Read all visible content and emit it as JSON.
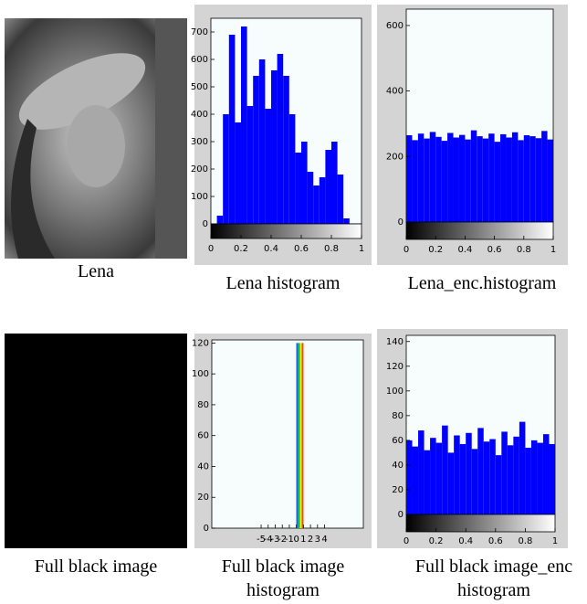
{
  "images": [
    {
      "caption": "Lena"
    },
    {
      "caption": "Full black image"
    }
  ],
  "chart_data": [
    {
      "type": "histogram",
      "caption": "Lena histogram",
      "color": "#0000ff",
      "bins": [
        0,
        0.04,
        0.08,
        0.12,
        0.16,
        0.2,
        0.24,
        0.28,
        0.32,
        0.36,
        0.4,
        0.44,
        0.48,
        0.52,
        0.56,
        0.6,
        0.64,
        0.68,
        0.72,
        0.76,
        0.8,
        0.84,
        0.88,
        0.92,
        0.96,
        1
      ],
      "values": [
        0,
        30,
        400,
        690,
        370,
        720,
        430,
        540,
        600,
        420,
        560,
        620,
        540,
        400,
        260,
        300,
        190,
        140,
        170,
        270,
        300,
        180,
        20,
        0,
        0
      ],
      "xlim": [
        0,
        1
      ],
      "xticks": [
        0,
        0.2,
        0.4,
        0.6,
        0.8,
        1
      ],
      "ylim": [
        0,
        750
      ],
      "yticks": [
        0,
        100,
        200,
        300,
        400,
        500,
        600,
        700
      ],
      "colorbar": true
    },
    {
      "type": "histogram",
      "caption": "Lena_enc.histogram",
      "color": "#0000ff",
      "bins": [
        0,
        0.04,
        0.08,
        0.12,
        0.16,
        0.2,
        0.24,
        0.28,
        0.32,
        0.36,
        0.4,
        0.44,
        0.48,
        0.52,
        0.56,
        0.6,
        0.64,
        0.68,
        0.72,
        0.76,
        0.8,
        0.84,
        0.88,
        0.92,
        0.96,
        1
      ],
      "values": [
        265,
        250,
        270,
        255,
        275,
        260,
        248,
        272,
        258,
        266,
        252,
        280,
        262,
        255,
        270,
        245,
        268,
        258,
        274,
        250,
        265,
        262,
        256,
        278,
        252
      ],
      "xlim": [
        0,
        1
      ],
      "xticks": [
        0,
        0.2,
        0.4,
        0.6,
        0.8,
        1
      ],
      "ylim": [
        0,
        650
      ],
      "yticks": [
        0,
        200,
        400,
        600
      ],
      "colorbar": true
    },
    {
      "type": "histogram",
      "caption": "Full black image histogram",
      "bins": [
        0,
        1
      ],
      "values": [
        120
      ],
      "xlim": [
        -12,
        9.5
      ],
      "xticks": [
        -5,
        -4,
        -3,
        -2,
        -1,
        0,
        1,
        2,
        3,
        4
      ],
      "ylim": [
        0,
        122
      ],
      "yticks": [
        0,
        20,
        40,
        60,
        80,
        100,
        120
      ],
      "colorbar": false
    },
    {
      "type": "histogram",
      "caption": "Full black image_enc histogram",
      "color": "#0000ff",
      "bins": [
        0,
        0.04,
        0.08,
        0.12,
        0.16,
        0.2,
        0.24,
        0.28,
        0.32,
        0.36,
        0.4,
        0.44,
        0.48,
        0.52,
        0.56,
        0.6,
        0.64,
        0.68,
        0.72,
        0.76,
        0.8,
        0.84,
        0.88,
        0.92,
        0.96,
        1
      ],
      "values": [
        60,
        55,
        68,
        52,
        62,
        58,
        72,
        50,
        64,
        57,
        66,
        53,
        70,
        59,
        61,
        48,
        67,
        56,
        63,
        75,
        54,
        60,
        58,
        65,
        57
      ],
      "xlim": [
        0,
        1
      ],
      "xticks": [
        0,
        0.2,
        0.4,
        0.6,
        0.8,
        1
      ],
      "ylim": [
        0,
        145
      ],
      "yticks": [
        0,
        20,
        40,
        60,
        80,
        100,
        120,
        140
      ],
      "colorbar": true
    }
  ]
}
